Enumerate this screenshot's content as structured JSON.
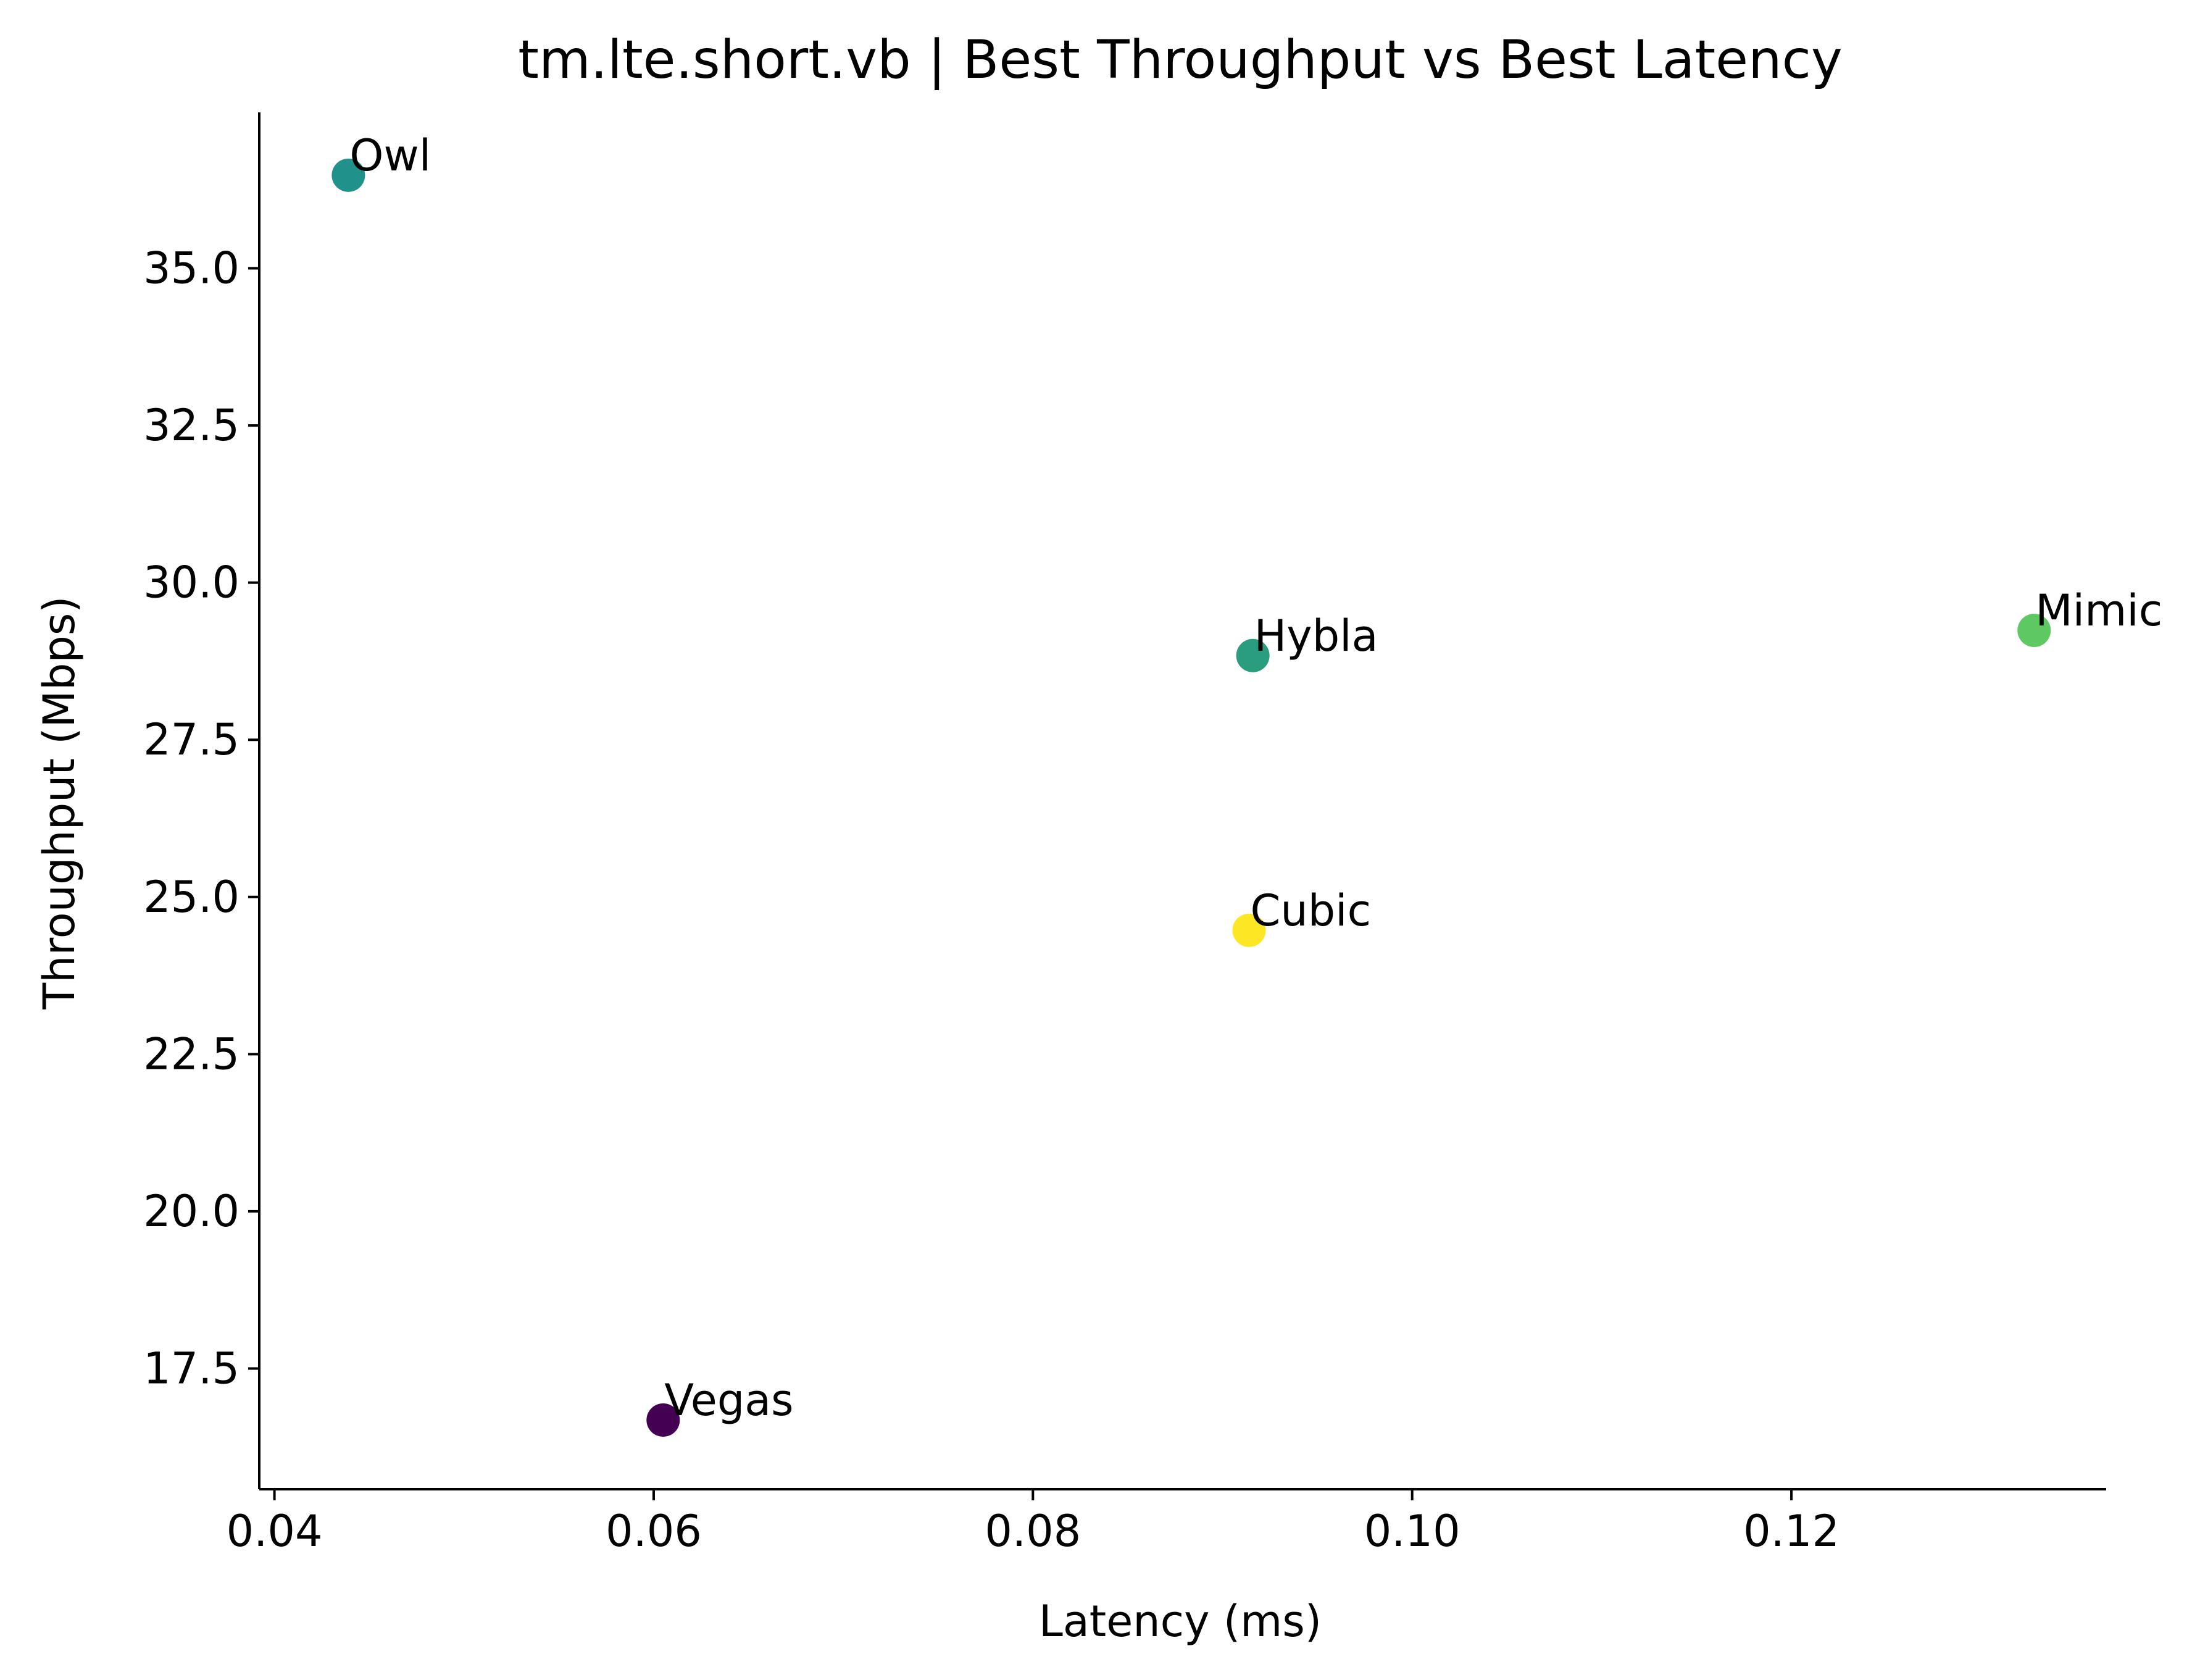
{
  "chart_data": {
    "type": "scatter",
    "title": "tm.lte.short.vb | Best Throughput vs Best Latency",
    "xlabel": "Latency (ms)",
    "ylabel": "Throughput (Mbps)",
    "xlim": [
      0.0392,
      0.1366
    ],
    "ylim": [
      15.58,
      37.48
    ],
    "xticks": [
      0.04,
      0.06,
      0.08,
      0.1,
      0.12
    ],
    "xtick_labels": [
      "0.04",
      "0.06",
      "0.08",
      "0.10",
      "0.12"
    ],
    "yticks": [
      17.5,
      20.0,
      22.5,
      25.0,
      27.5,
      30.0,
      32.5,
      35.0
    ],
    "ytick_labels": [
      "17.5",
      "20.0",
      "22.5",
      "25.0",
      "27.5",
      "30.0",
      "32.5",
      "35.0"
    ],
    "grid": false,
    "points": [
      {
        "label": "Owl",
        "x": 0.0439,
        "y": 36.48,
        "color": "#21918c"
      },
      {
        "label": "Vegas",
        "x": 0.0605,
        "y": 16.68,
        "color": "#440154"
      },
      {
        "label": "Hybla",
        "x": 0.0916,
        "y": 28.84,
        "color": "#2a9d7f"
      },
      {
        "label": "Cubic",
        "x": 0.0914,
        "y": 24.47,
        "color": "#fde725"
      },
      {
        "label": "Mimic",
        "x": 0.1328,
        "y": 29.24,
        "color": "#5ec962"
      }
    ]
  }
}
